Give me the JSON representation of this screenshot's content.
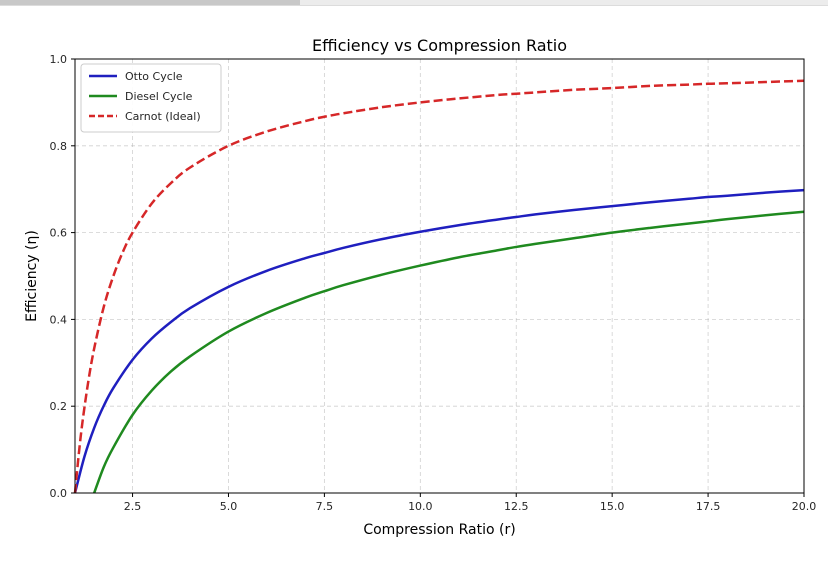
{
  "chart_data": {
    "type": "line",
    "title": "Efficiency vs Compression Ratio",
    "xlabel": "Compression Ratio (r)",
    "ylabel": "Efficiency (η)",
    "xlim": [
      1.0,
      20.0
    ],
    "ylim": [
      0.0,
      1.0
    ],
    "grid": true,
    "legend_position": "upper-left",
    "x_ticks": [
      2.5,
      5.0,
      7.5,
      10.0,
      12.5,
      15.0,
      17.5,
      20.0
    ],
    "x_tick_labels": [
      "2.5",
      "5.0",
      "7.5",
      "10.0",
      "12.5",
      "15.0",
      "17.5",
      "20.0"
    ],
    "y_ticks": [
      0.0,
      0.2,
      0.4,
      0.6,
      0.8,
      1.0
    ],
    "y_tick_labels": [
      "0.0",
      "0.2",
      "0.4",
      "0.6",
      "0.8",
      "1.0"
    ],
    "series": [
      {
        "name": "Otto Cycle",
        "color": "#1f1fbf",
        "style": "solid",
        "x": [
          1.0,
          1.25,
          1.5,
          1.75,
          2.0,
          2.5,
          3.0,
          3.5,
          4.0,
          5.0,
          6.0,
          7.0,
          7.5,
          8.0,
          9.0,
          10.0,
          11.0,
          12.0,
          12.5,
          13.0,
          14.0,
          15.0,
          16.0,
          17.0,
          17.5,
          18.0,
          19.0,
          20.0
        ],
        "y": [
          0.0,
          0.085,
          0.15,
          0.201,
          0.242,
          0.307,
          0.356,
          0.394,
          0.426,
          0.475,
          0.512,
          0.541,
          0.553,
          0.565,
          0.585,
          0.602,
          0.617,
          0.63,
          0.636,
          0.642,
          0.652,
          0.661,
          0.67,
          0.678,
          0.682,
          0.685,
          0.692,
          0.698
        ]
      },
      {
        "name": "Diesel Cycle",
        "color": "#1f8a1f",
        "style": "solid",
        "x": [
          1.5,
          1.75,
          2.0,
          2.5,
          3.0,
          3.5,
          4.0,
          5.0,
          6.0,
          7.0,
          7.5,
          8.0,
          9.0,
          10.0,
          11.0,
          12.0,
          12.5,
          13.0,
          14.0,
          15.0,
          16.0,
          17.0,
          17.5,
          18.0,
          19.0,
          20.0
        ],
        "y": [
          0.0,
          0.06,
          0.105,
          0.18,
          0.236,
          0.28,
          0.315,
          0.372,
          0.415,
          0.45,
          0.465,
          0.479,
          0.503,
          0.524,
          0.543,
          0.559,
          0.567,
          0.574,
          0.587,
          0.6,
          0.611,
          0.621,
          0.626,
          0.631,
          0.64,
          0.648
        ]
      },
      {
        "name": "Carnot (Ideal)",
        "color": "#d62728",
        "style": "dashed",
        "x": [
          1.0,
          1.1,
          1.2,
          1.35,
          1.5,
          1.75,
          2.0,
          2.25,
          2.5,
          3.0,
          3.5,
          4.0,
          5.0,
          6.0,
          7.0,
          7.5,
          8.0,
          9.0,
          10.0,
          11.0,
          12.0,
          12.5,
          13.0,
          14.0,
          15.0,
          16.0,
          17.0,
          17.5,
          18.0,
          19.0,
          20.0
        ],
        "y": [
          0.0,
          0.091,
          0.167,
          0.259,
          0.333,
          0.429,
          0.5,
          0.556,
          0.6,
          0.667,
          0.714,
          0.75,
          0.8,
          0.833,
          0.857,
          0.867,
          0.875,
          0.889,
          0.9,
          0.909,
          0.917,
          0.92,
          0.923,
          0.929,
          0.933,
          0.938,
          0.941,
          0.943,
          0.944,
          0.947,
          0.95
        ]
      }
    ]
  }
}
